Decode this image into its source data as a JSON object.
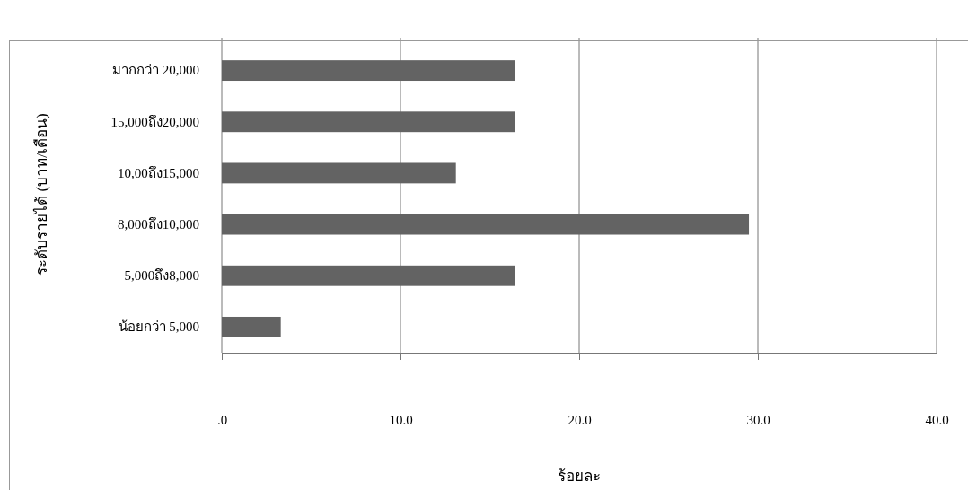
{
  "chart_data": {
    "type": "bar",
    "orientation": "horizontal",
    "ylabel": "ระดับรายได้ (บาท/เดือน)",
    "xlabel": "ร้อยละ",
    "categories": [
      "มากกว่า 20,000",
      "15,000ถึง20,000",
      "10,00ถึง15,000",
      "8,000ถึง10,000",
      "5,000ถึง8,000",
      "น้อยกว่า 5,000"
    ],
    "values": [
      16.4,
      16.4,
      13.1,
      29.5,
      16.4,
      3.3
    ],
    "color": "#636363",
    "xlim": [
      0,
      40
    ],
    "xticks": [
      {
        "value": 0,
        "label": ".0"
      },
      {
        "value": 10,
        "label": "10.0"
      },
      {
        "value": 20,
        "label": "20.0"
      },
      {
        "value": 30,
        "label": "30.0"
      },
      {
        "value": 40,
        "label": "40.0"
      }
    ],
    "grid": "x"
  }
}
